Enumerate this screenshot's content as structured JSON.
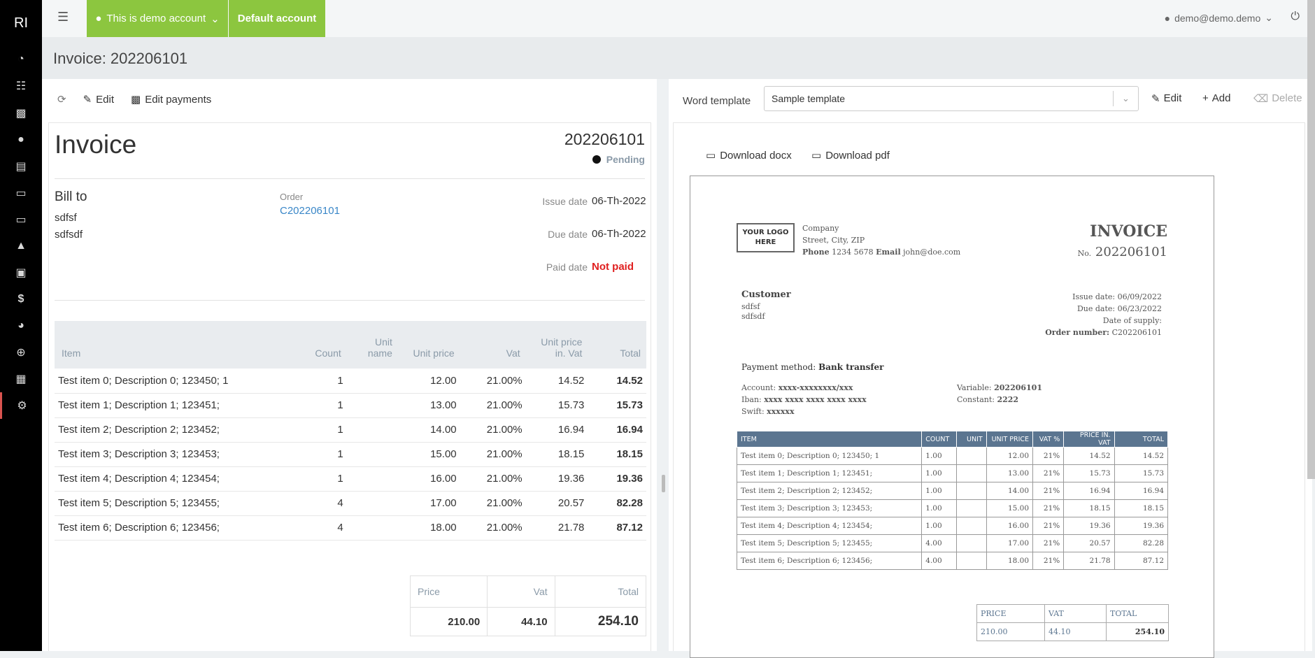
{
  "sidebar": {
    "brand": "RI",
    "icons": [
      "dashboard-icon",
      "barcode-icon",
      "boxes-icon",
      "map-marker-icon",
      "folder-open-icon",
      "file-icon",
      "file-text-icon",
      "basket-icon",
      "cart-icon",
      "dollar-icon",
      "pie-chart-icon",
      "crosshairs-icon",
      "sitemap-icon",
      "settings-icon"
    ]
  },
  "topbar": {
    "demo_account": "This is demo account",
    "default_account": "Default account",
    "user_email": "demo@demo.demo"
  },
  "page": {
    "title": "Invoice: 202206101"
  },
  "left_toolbar": {
    "edit": "Edit",
    "edit_payments": "Edit payments"
  },
  "invoice": {
    "heading": "Invoice",
    "number": "202206101",
    "status": "Pending",
    "bill_to_label": "Bill to",
    "bill_to_lines": [
      "sdfsf",
      "sdfsdf"
    ],
    "order_label": "Order",
    "order_value": "C202206101",
    "issue_date_label": "Issue date",
    "issue_date": "06-Th-2022",
    "due_date_label": "Due date",
    "due_date": "06-Th-2022",
    "paid_date_label": "Paid date",
    "paid_date": "Not paid",
    "columns": [
      "Item",
      "Count",
      "Unit name",
      "Unit price",
      "Vat",
      "Unit price in. Vat",
      "Total"
    ],
    "column_lines": {
      "unit_name_1": "Unit",
      "unit_name_2": "name",
      "unit_price_vat_1": "Unit price",
      "unit_price_vat_2": "in. Vat"
    },
    "rows": [
      {
        "item": "Test item 0; Description 0; 123450; 1",
        "count": "1",
        "unit": "",
        "price": "12.00",
        "vat": "21.00%",
        "price_vat": "14.52",
        "total": "14.52"
      },
      {
        "item": "Test item 1; Description 1; 123451;",
        "count": "1",
        "unit": "",
        "price": "13.00",
        "vat": "21.00%",
        "price_vat": "15.73",
        "total": "15.73"
      },
      {
        "item": "Test item 2; Description 2; 123452;",
        "count": "1",
        "unit": "",
        "price": "14.00",
        "vat": "21.00%",
        "price_vat": "16.94",
        "total": "16.94"
      },
      {
        "item": "Test item 3; Description 3; 123453;",
        "count": "1",
        "unit": "",
        "price": "15.00",
        "vat": "21.00%",
        "price_vat": "18.15",
        "total": "18.15"
      },
      {
        "item": "Test item 4; Description 4; 123454;",
        "count": "1",
        "unit": "",
        "price": "16.00",
        "vat": "21.00%",
        "price_vat": "19.36",
        "total": "19.36"
      },
      {
        "item": "Test item 5; Description 5; 123455;",
        "count": "4",
        "unit": "",
        "price": "17.00",
        "vat": "21.00%",
        "price_vat": "20.57",
        "total": "82.28"
      },
      {
        "item": "Test item 6; Description 6; 123456;",
        "count": "4",
        "unit": "",
        "price": "18.00",
        "vat": "21.00%",
        "price_vat": "21.78",
        "total": "87.12"
      }
    ],
    "totals": {
      "price_label": "Price",
      "vat_label": "Vat",
      "total_label": "Total",
      "price": "210.00",
      "vat": "44.10",
      "total": "254.10"
    }
  },
  "right_toolbar": {
    "word_template_label": "Word template",
    "template_selected": "Sample template",
    "edit": "Edit",
    "add": "Add",
    "delete": "Delete",
    "download_docx": "Download docx",
    "download_pdf": "Download pdf"
  },
  "preview": {
    "logo_line1": "YOUR LOGO",
    "logo_line2": "HERE",
    "company_name": "Company",
    "company_address": "Street, City, ZIP",
    "phone_label": "Phone",
    "phone": "1234 5678",
    "email_label": "Email",
    "email": "john@doe.com",
    "heading": "INVOICE",
    "no_label": "No.",
    "number": "202206101",
    "customer_label": "Customer",
    "customer_lines": [
      "sdfsf",
      "sdfsdf"
    ],
    "issue_date": "Issue date: 06/09/2022",
    "due_date": "Due date: 06/23/2022",
    "date_of_supply": "Date of supply:",
    "order_number_label": "Order number:",
    "order_number": "C202206101",
    "payment_method_label": "Payment method:",
    "payment_method": "Bank transfer",
    "account_label": "Account:",
    "account": "xxxx-xxxxxxxx/xxx",
    "iban_label": "Iban:",
    "iban": "xxxx xxxx xxxx xxxx xxxx",
    "swift_label": "Swift:",
    "swift": "xxxxxx",
    "variable_label": "Variable:",
    "variable": "202206101",
    "constant_label": "Constant:",
    "constant": "2222",
    "columns": [
      "ITEM",
      "COUNT",
      "UNIT",
      "UNIT PRICE",
      "VAT %",
      "PRICE IN. VAT",
      "TOTAL"
    ],
    "rows": [
      {
        "item": "Test item 0; Description 0; 123450; 1",
        "count": "1.00",
        "unit": "",
        "price": "12.00",
        "vat": "21%",
        "price_vat": "14.52",
        "total": "14.52"
      },
      {
        "item": "Test item 1; Description 1; 123451;",
        "count": "1.00",
        "unit": "",
        "price": "13.00",
        "vat": "21%",
        "price_vat": "15.73",
        "total": "15.73"
      },
      {
        "item": "Test item 2; Description 2; 123452;",
        "count": "1.00",
        "unit": "",
        "price": "14.00",
        "vat": "21%",
        "price_vat": "16.94",
        "total": "16.94"
      },
      {
        "item": "Test item 3; Description 3; 123453;",
        "count": "1.00",
        "unit": "",
        "price": "15.00",
        "vat": "21%",
        "price_vat": "18.15",
        "total": "18.15"
      },
      {
        "item": "Test item 4; Description 4; 123454;",
        "count": "1.00",
        "unit": "",
        "price": "16.00",
        "vat": "21%",
        "price_vat": "19.36",
        "total": "19.36"
      },
      {
        "item": "Test item 5; Description 5; 123455;",
        "count": "4.00",
        "unit": "",
        "price": "17.00",
        "vat": "21%",
        "price_vat": "20.57",
        "total": "82.28"
      },
      {
        "item": "Test item 6; Description 6; 123456;",
        "count": "4.00",
        "unit": "",
        "price": "18.00",
        "vat": "21%",
        "price_vat": "21.78",
        "total": "87.12"
      }
    ],
    "summary": {
      "price_label": "PRICE",
      "vat_label": "VAT",
      "total_label": "TOTAL",
      "price": "210.00",
      "vat": "44.10",
      "total": "254.10"
    }
  }
}
